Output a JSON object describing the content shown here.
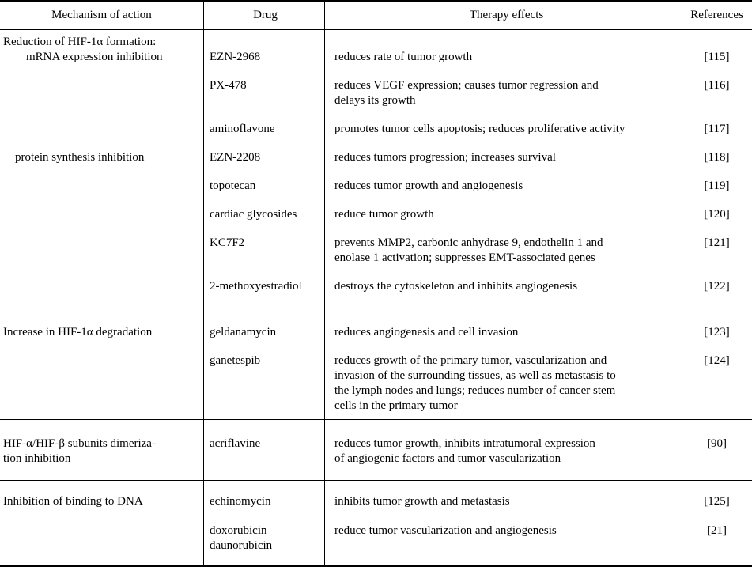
{
  "colors": {
    "text": "#000000",
    "background": "#ffffff",
    "border": "#000000"
  },
  "table": {
    "headers": [
      "Mechanism of action",
      "Drug",
      "Therapy effects",
      "References"
    ],
    "sections": [
      {
        "mechanism_intro": "Reduction of HIF-1α formation:",
        "mechanism_sub1": "mRNA expression inhibition",
        "mechanism_sub2": "protein synthesis inhibition",
        "rows": [
          {
            "drug": "EZN-2968",
            "effect": "reduces rate of tumor growth",
            "ref": "[115]"
          },
          {
            "drug": "PX-478",
            "effect": [
              "reduces VEGF expression; causes tumor regression and",
              "delays its growth"
            ],
            "ref": "[116]"
          },
          {
            "drug": "aminoflavone",
            "effect": "promotes tumor cells apoptosis; reduces proliferative activity",
            "ref": "[117]"
          },
          {
            "drug": "EZN-2208",
            "effect": "reduces tumors progression; increases survival",
            "ref": "[118]"
          },
          {
            "drug": "topotecan",
            "effect": "reduces tumor growth and angiogenesis",
            "ref": "[119]"
          },
          {
            "drug": "cardiac glycosides",
            "effect": "reduce tumor growth",
            "ref": "[120]"
          },
          {
            "drug": "KC7F2",
            "effect": [
              "prevents MMP2, carbonic anhydrase 9, endothelin 1 and",
              "enolase 1 activation; suppresses EMT-associated genes"
            ],
            "ref": "[121]"
          },
          {
            "drug": "2-methoxyestradiol",
            "effect": "destroys the cytoskeleton and inhibits angiogenesis",
            "ref": "[122]"
          }
        ]
      },
      {
        "mechanism": "Increase in HIF-1α degradation",
        "rows": [
          {
            "drug": "geldanamycin",
            "effect": "reduces angiogenesis and cell invasion",
            "ref": "[123]"
          },
          {
            "drug": "ganetespib",
            "effect": [
              "reduces growth of the primary tumor, vascularization and",
              "invasion of the surrounding tissues, as well as metastasis to",
              "the lymph nodes and lungs; reduces number of cancer stem",
              "cells in the primary tumor"
            ],
            "ref": "[124]"
          }
        ]
      },
      {
        "mechanism": [
          "HIF-α/HIF-β subunits dimeriza-",
          "tion inhibition"
        ],
        "rows": [
          {
            "drug": "acriflavine",
            "effect": [
              "reduces tumor growth, inhibits intratumoral expression",
              "of angiogenic factors and tumor vascularization"
            ],
            "ref": "[90]"
          }
        ]
      },
      {
        "mechanism": "Inhibition of binding to DNA",
        "rows": [
          {
            "drug": "echinomycin",
            "effect": "inhibits tumor growth and metastasis",
            "ref": "[125]"
          },
          {
            "drug": [
              "doxorubicin",
              "daunorubicin"
            ],
            "effect": "reduce tumor vascularization and angiogenesis",
            "ref": "[21]"
          }
        ]
      }
    ]
  }
}
